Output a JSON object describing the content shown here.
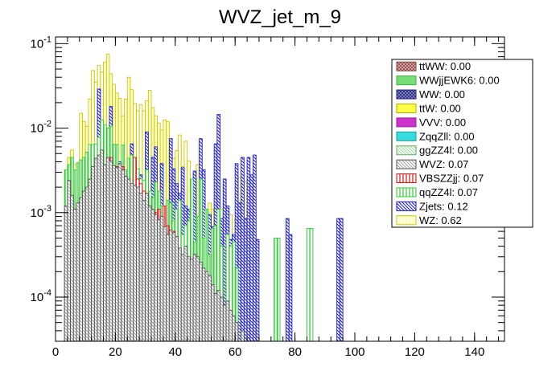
{
  "chart_data": {
    "type": "bar",
    "title": "WVZ_jet_m_9",
    "xlabel": "",
    "ylabel": "",
    "y_scale": "log",
    "xlim": [
      0,
      150
    ],
    "ylim": [
      3e-05,
      0.12
    ],
    "bin_width": 1,
    "x_ticks": [
      {
        "value": 0,
        "label": "0"
      },
      {
        "value": 20,
        "label": "20"
      },
      {
        "value": 40,
        "label": "40"
      },
      {
        "value": 60,
        "label": "60"
      },
      {
        "value": 80,
        "label": "80"
      },
      {
        "value": 100,
        "label": "100"
      },
      {
        "value": 120,
        "label": "120"
      },
      {
        "value": 140,
        "label": "140"
      }
    ],
    "y_ticks": [
      {
        "value": 0.1,
        "base": "10",
        "exp": "-1"
      },
      {
        "value": 0.01,
        "base": "10",
        "exp": "-2"
      },
      {
        "value": 0.001,
        "base": "10",
        "exp": "-3"
      },
      {
        "value": 0.0001,
        "base": "10",
        "exp": "-4"
      }
    ],
    "series": [
      {
        "name": "WZ",
        "label": "WZ: 0.62",
        "color": "#ffff66",
        "hatch": "vertical",
        "stroke": "#c8c800",
        "bins": {
          "4": 0.0045,
          "5": 0.0055,
          "6": 0.0037,
          "8": 0.015,
          "9": 0.012,
          "10": 0.0105,
          "11": 0.022,
          "12": 0.048,
          "13": 0.035,
          "14": 0.055,
          "15": 0.046,
          "16": 0.06,
          "17": 0.075,
          "18": 0.044,
          "19": 0.033,
          "20": 0.026,
          "21": 0.0225,
          "22": 0.014,
          "23": 0.022,
          "24": 0.04,
          "25": 0.0285,
          "26": 0.0195,
          "27": 0.016,
          "28": 0.019,
          "29": 0.016,
          "30": 0.021,
          "31": 0.028,
          "32": 0.0175,
          "33": 0.014,
          "34": 0.0115,
          "35": 0.0095,
          "36": 0.0125,
          "37": 0.012,
          "38": 0.0052,
          "39": 0.0044,
          "40": 0.0054,
          "41": 0.0083,
          "42": 0.0035,
          "43": 0.007,
          "44": 0.0041,
          "45": 0.0022,
          "46": 0.0021,
          "47": 0.0037,
          "48": 0.0023,
          "49": 0.0017,
          "50": 0.0011,
          "51": 0.0013,
          "52": 0.0011,
          "53": 0.0013,
          "54": 0.0019,
          "55": 0.0011,
          "56": 0.0023,
          "58": 0.00095,
          "60": 0.0008,
          "61": 0.0026,
          "63": 0.0023
        }
      },
      {
        "name": "Zjets",
        "label": "Zjets: 0.12",
        "color": "#1a1acc",
        "hatch": "backdiag",
        "stroke": "#1a1acc",
        "bins": {
          "3": 0.0002,
          "5": 0.0004,
          "6": 0.00025,
          "7": 0.0006,
          "8": 0.0012,
          "9": 0.0015,
          "11": 0.005,
          "12": 0.0038,
          "14": 0.029,
          "15": 0.0065,
          "16": 0.003,
          "17": 0.0085,
          "18": 0.018,
          "20": 0.0035,
          "21": 0.004,
          "22": 0.0018,
          "23": 0.0012,
          "24": 0.0021,
          "25": 0.0065,
          "26": 0.0035,
          "27": 0.0015,
          "28": 0.0028,
          "29": 0.0003,
          "30": 0.009,
          "31": 0.0015,
          "32": 0.0045,
          "33": 0.006,
          "34": 0.0012,
          "35": 0.0038,
          "36": 0.0012,
          "38": 0.0075,
          "39": 0.0033,
          "40": 0.0022,
          "41": 0.0017,
          "42": 0.0034,
          "43": 0.0012,
          "44": 0.0011,
          "45": 0.00085,
          "46": 0.0031,
          "47": 0.00055,
          "48": 0.0075,
          "49": 0.0032,
          "50": 0.0011,
          "51": 0.00095,
          "52": 0.00068,
          "53": 0.0065,
          "54": 0.0145,
          "55": 0.00085,
          "56": 0.0025,
          "57": 0.0012,
          "58": 0.00048,
          "59": 0.00055,
          "60": 0.0038,
          "61": 0.0013,
          "62": 0.0045,
          "63": 0.00085,
          "64": 0.0045,
          "65": 0.0028,
          "66": 0.0048,
          "67": 0.00048,
          "77": 0.00085,
          "78": 0.00055,
          "94": 0.00085,
          "95": 0.00085
        }
      },
      {
        "name": "qqZZ4l",
        "label": "qqZZ4l: 0.07",
        "color": "#33cc33",
        "hatch": "vertical",
        "stroke": "#33cc33",
        "bins": {
          "3": 0.0032,
          "4": 0.0037,
          "5": 0.0045,
          "6": 0.0032,
          "7": 0.0039,
          "8": 0.0042,
          "9": 0.0045,
          "10": 0.0052,
          "11": 0.0064,
          "12": 0.0064,
          "13": 0.0065,
          "14": 0.0078,
          "15": 0.0125,
          "16": 0.011,
          "17": 0.01,
          "18": 0.0105,
          "19": 0.0064,
          "20": 0.0064,
          "21": 0.0038,
          "22": 0.0063,
          "23": 0.0032,
          "24": 0.0044,
          "25": 0.0048,
          "26": 0.0037,
          "27": 0.0033,
          "28": 0.0025,
          "29": 0.0024,
          "30": 0.0032,
          "31": 0.0018,
          "32": 0.0015,
          "33": 0.0023,
          "34": 0.0018,
          "35": 0.0012,
          "36": 0.0011,
          "37": 0.0014,
          "38": 0.0013,
          "39": 0.0008,
          "40": 0.0011,
          "41": 0.0014,
          "42": 0.00055,
          "43": 0.0007,
          "44": 0.0008,
          "45": 0.0025,
          "46": 0.00045,
          "47": 0.0009,
          "48": 0.0025,
          "49": 0.0005,
          "50": 0.0011,
          "51": 0.00032,
          "52": 0.00065,
          "53": 0.0007,
          "54": 0.0011,
          "55": 0.0004,
          "57": 0.00055,
          "58": 0.0004,
          "59": 0.00045,
          "60": 0.00022,
          "73": 0.0005,
          "74": 0.0005,
          "84": 0.00065,
          "85": 0.00065
        }
      },
      {
        "name": "VBSZZjj",
        "label": "VBSZZjj: 0.07",
        "color": "#dd1111",
        "hatch": "vertical",
        "stroke": "#dd1111",
        "bins": {
          "9": 0.0012,
          "10": 0.0016,
          "11": 0.0011,
          "12": 0.0014,
          "13": 0.0028,
          "14": 0.0034,
          "15": 0.0032,
          "16": 0.0035,
          "17": 0.0025,
          "18": 0.0045,
          "19": 0.0028,
          "20": 0.0035,
          "21": 0.003,
          "22": 0.0035,
          "23": 0.0025,
          "24": 0.0022,
          "25": 0.0018,
          "26": 0.0045,
          "27": 0.0025,
          "28": 0.0022,
          "29": 0.0018,
          "30": 0.0012,
          "31": 0.0011,
          "32": 0.00095,
          "33": 0.001,
          "34": 0.0011,
          "35": 0.00088,
          "36": 0.0012,
          "37": 0.0007,
          "38": 0.00055,
          "39": 0.0006,
          "40": 0.0005
        }
      },
      {
        "name": "WVZ",
        "label": "WVZ: 0.07",
        "color": "#a0a0a0",
        "hatch": "backdiag",
        "stroke": "#505050",
        "bins": {
          "3": 0.0012,
          "4": 0.0024,
          "5": 0.0016,
          "6": 0.0011,
          "7": 0.0013,
          "8": 0.0015,
          "9": 0.0018,
          "10": 0.002,
          "11": 0.0025,
          "12": 0.0035,
          "13": 0.0044,
          "14": 0.0048,
          "15": 0.0055,
          "16": 0.0037,
          "17": 0.0045,
          "18": 0.0041,
          "19": 0.0036,
          "20": 0.0034,
          "21": 0.0038,
          "22": 0.0032,
          "23": 0.0027,
          "24": 0.0025,
          "25": 0.0022,
          "26": 0.0021,
          "27": 0.002,
          "28": 0.0017,
          "29": 0.0014,
          "30": 0.0017,
          "31": 0.0012,
          "32": 0.0011,
          "33": 0.00095,
          "34": 0.00082,
          "35": 0.0009,
          "36": 0.00068,
          "37": 0.00055,
          "38": 0.00062,
          "39": 0.00058,
          "40": 0.00052,
          "41": 0.00038,
          "42": 0.00032,
          "43": 0.0004,
          "44": 0.0003,
          "45": 0.00028,
          "46": 0.00032,
          "47": 0.0003,
          "48": 0.00026,
          "49": 0.00022,
          "50": 0.0002,
          "51": 0.00018,
          "52": 0.00014,
          "53": 0.00011,
          "54": 0.00012,
          "55": 0.0001,
          "56": 8e-05,
          "57": 9e-05,
          "58": 7e-05,
          "59": 6e-05,
          "60": 5e-05,
          "62": 4e-05
        }
      },
      {
        "name": "ggZZ4l",
        "label": "ggZZ4l: 0.00",
        "color": "#99dd99",
        "hatch": "backdiag",
        "stroke": "#66aa66",
        "bins": {}
      },
      {
        "name": "ZqqZll",
        "label": "ZqqZll: 0.00",
        "color": "#33dddd",
        "hatch": "none",
        "stroke": "#229999",
        "bins": {}
      },
      {
        "name": "VVV",
        "label": "VVV: 0.00",
        "color": "#cc33cc",
        "hatch": "none",
        "stroke": "#992299",
        "bins": {}
      },
      {
        "name": "ttW",
        "label": "ttW: 0.00",
        "color": "#ffff44",
        "hatch": "none",
        "stroke": "#aaaa00",
        "bins": {}
      },
      {
        "name": "WW",
        "label": "WW: 0.00",
        "color": "#3333aa",
        "hatch": "crosshatch",
        "stroke": "#222277",
        "bins": {}
      },
      {
        "name": "WWjjEWK6",
        "label": "WWjjEWK6: 0.00",
        "color": "#77dd77",
        "hatch": "none",
        "stroke": "#44aa44",
        "bins": {}
      },
      {
        "name": "ttWW",
        "label": "ttWW: 0.00",
        "color": "#cc7777",
        "hatch": "crosshatch",
        "stroke": "#884444",
        "bins": {}
      }
    ]
  }
}
